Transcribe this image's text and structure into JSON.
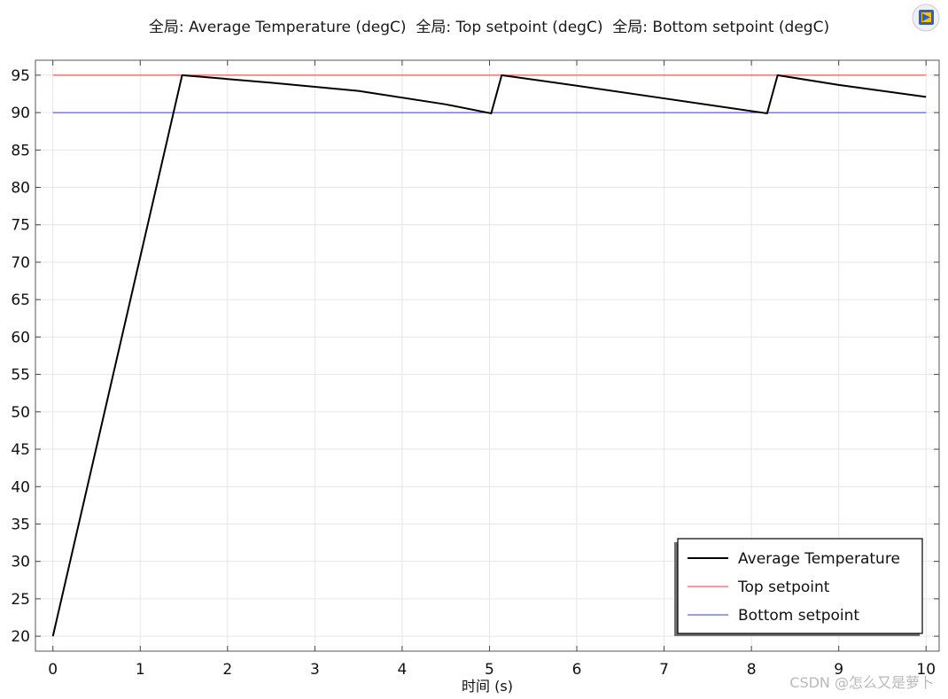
{
  "chart_data": {
    "type": "line",
    "title_parts": [
      "全局: Average Temperature (degC)",
      "全局: Top setpoint (degC)",
      "全局: Bottom setpoint (degC)"
    ],
    "xlabel": "时间 (s)",
    "ylabel": "",
    "xlim": [
      -0.2,
      10.15
    ],
    "ylim": [
      18,
      97
    ],
    "xticks": [
      0,
      1,
      2,
      3,
      4,
      5,
      6,
      7,
      8,
      9,
      10
    ],
    "yticks": [
      20,
      25,
      30,
      35,
      40,
      45,
      50,
      55,
      60,
      65,
      70,
      75,
      80,
      85,
      90,
      95
    ],
    "grid": true,
    "legend_position": "bottom-right",
    "series": [
      {
        "name": "Average Temperature",
        "color": "#000000",
        "x": [
          0,
          1.48,
          2.5,
          3.5,
          4.5,
          5.02,
          5.14,
          6,
          7,
          8.18,
          8.3,
          9,
          10
        ],
        "y": [
          20,
          95,
          94.0,
          92.9,
          91.1,
          89.9,
          95,
          93.6,
          91.9,
          89.9,
          95,
          93.7,
          92.1
        ]
      },
      {
        "name": "Top setpoint",
        "color": "#ff3333",
        "x": [
          0,
          10
        ],
        "y": [
          95,
          95
        ]
      },
      {
        "name": "Bottom setpoint",
        "color": "#3333ff",
        "x": [
          0,
          10
        ],
        "y": [
          90,
          90
        ]
      }
    ]
  },
  "watermark": "CSDN @怎么又是萝卜"
}
